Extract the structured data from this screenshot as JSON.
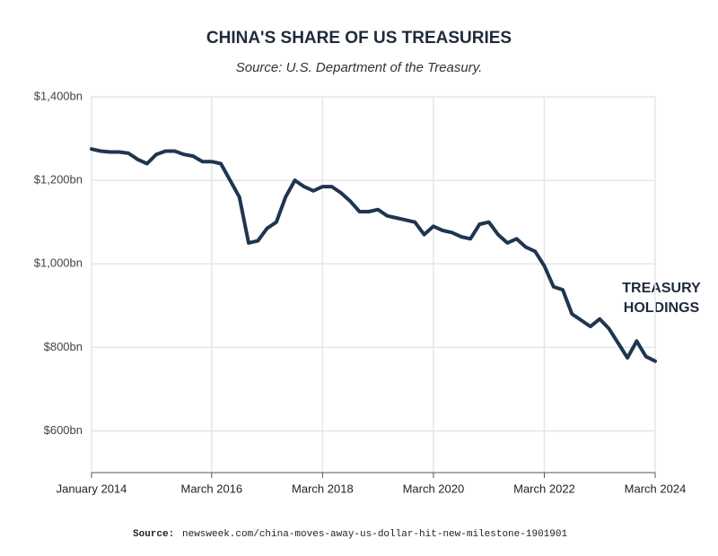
{
  "chart_data": {
    "type": "line",
    "title": "CHINA'S SHARE OF US TREASURIES",
    "subtitle": "Source: U.S. Department of the Treasury.",
    "annotation_lines": [
      "TREASURY",
      "HOLDINGS"
    ],
    "footer": {
      "label": "Source:",
      "url": "newsweek.com/china-moves-away-us-dollar-hit-new-milestone-1901901"
    },
    "x": [
      "2014-01",
      "2014-03",
      "2014-05",
      "2014-07",
      "2014-09",
      "2014-11",
      "2015-01",
      "2015-03",
      "2015-05",
      "2015-07",
      "2015-09",
      "2015-11",
      "2016-01",
      "2016-03",
      "2016-05",
      "2016-07",
      "2016-09",
      "2016-11",
      "2017-01",
      "2017-03",
      "2017-05",
      "2017-07",
      "2017-09",
      "2017-11",
      "2018-01",
      "2018-03",
      "2018-05",
      "2018-07",
      "2018-09",
      "2018-11",
      "2019-01",
      "2019-03",
      "2019-05",
      "2019-07",
      "2019-09",
      "2019-11",
      "2020-01",
      "2020-03",
      "2020-05",
      "2020-07",
      "2020-09",
      "2020-11",
      "2021-01",
      "2021-03",
      "2021-05",
      "2021-07",
      "2021-09",
      "2021-11",
      "2022-01",
      "2022-03",
      "2022-05",
      "2022-07",
      "2022-09",
      "2022-11",
      "2023-01",
      "2023-03",
      "2023-05",
      "2023-07",
      "2023-09",
      "2023-11",
      "2024-01",
      "2024-03"
    ],
    "series": [
      {
        "name": "Treasury holdings",
        "color": "#1f3550",
        "values": [
          1275,
          1270,
          1268,
          1268,
          1265,
          1250,
          1240,
          1262,
          1270,
          1270,
          1262,
          1258,
          1245,
          1245,
          1240,
          1200,
          1160,
          1050,
          1055,
          1085,
          1100,
          1160,
          1200,
          1185,
          1175,
          1185,
          1185,
          1170,
          1150,
          1125,
          1125,
          1130,
          1115,
          1110,
          1105,
          1100,
          1070,
          1090,
          1080,
          1075,
          1065,
          1060,
          1095,
          1100,
          1070,
          1050,
          1060,
          1040,
          1030,
          995,
          945,
          938,
          880,
          865,
          850,
          868,
          845,
          810,
          775,
          815,
          778,
          767
        ]
      }
    ],
    "xlim": [
      "2014-01",
      "2024-03"
    ],
    "xticks": [
      {
        "value": "2014-01",
        "label": "January 2014"
      },
      {
        "value": "2016-03",
        "label": "March 2016"
      },
      {
        "value": "2018-03",
        "label": "March 2018"
      },
      {
        "value": "2020-03",
        "label": "March 2020"
      },
      {
        "value": "2022-03",
        "label": "March 2022"
      },
      {
        "value": "2024-03",
        "label": "March 2024"
      }
    ],
    "ylim": [
      500,
      1400
    ],
    "yticks": [
      {
        "value": 600,
        "label": "$600bn"
      },
      {
        "value": 800,
        "label": "$800bn"
      },
      {
        "value": 1000,
        "label": "$1,000bn"
      },
      {
        "value": 1200,
        "label": "$1,200bn"
      },
      {
        "value": 1400,
        "label": "$1,400bn"
      }
    ],
    "grid": true
  }
}
